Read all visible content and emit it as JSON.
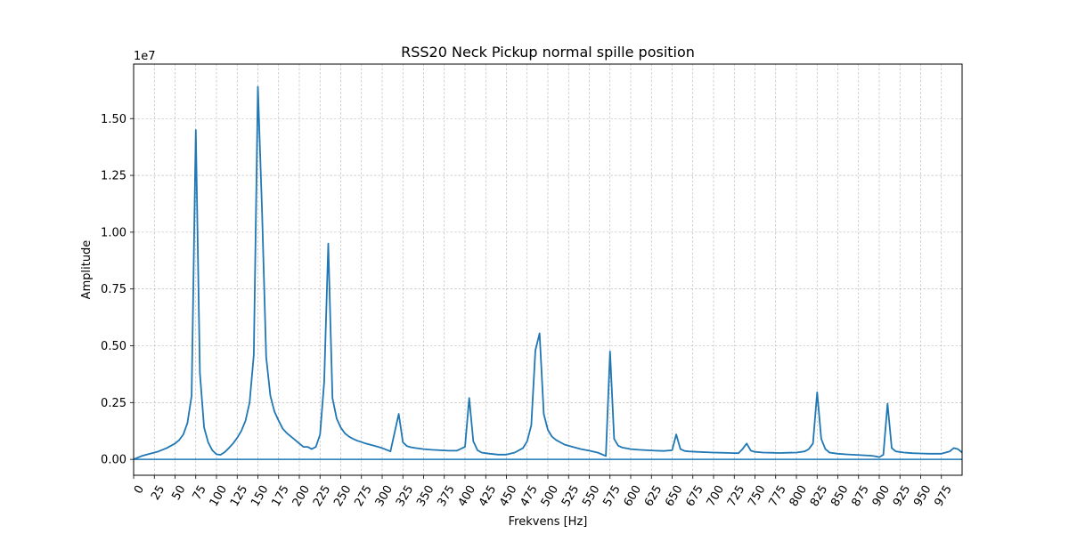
{
  "chart_data": {
    "type": "line",
    "title": "RSS20 Neck Pickup normal spille position",
    "xlabel": "Frekvens [Hz]",
    "ylabel": "Amplitude",
    "y_offset_label": "1e7",
    "xlim": [
      0,
      1000
    ],
    "ylim": [
      -700000,
      17400000
    ],
    "grid": true,
    "x_ticks": [
      0,
      25,
      50,
      75,
      100,
      125,
      150,
      175,
      200,
      225,
      250,
      275,
      300,
      325,
      350,
      375,
      400,
      425,
      450,
      475,
      500,
      525,
      550,
      575,
      600,
      625,
      650,
      675,
      700,
      725,
      750,
      775,
      800,
      825,
      850,
      875,
      900,
      925,
      950,
      975
    ],
    "y_ticks": [
      0,
      2500000,
      5000000,
      7500000,
      10000000,
      12500000,
      15000000
    ],
    "y_tick_labels": [
      "0.00",
      "0.25",
      "0.50",
      "0.75",
      "1.00",
      "1.25",
      "1.50"
    ],
    "line_color": "#1f77b4",
    "series": [
      {
        "x": [
          0,
          10,
          20,
          30,
          40,
          50,
          55,
          60,
          65,
          70,
          75,
          80,
          85,
          90,
          95,
          100,
          105,
          110,
          115,
          120,
          125,
          130,
          135,
          140,
          145,
          150,
          155,
          160,
          165,
          170,
          175,
          180,
          185,
          190,
          195,
          200,
          205,
          210,
          215,
          220,
          225,
          230,
          235,
          240,
          245,
          250,
          255,
          260,
          265,
          270,
          275,
          280,
          290,
          300,
          310,
          320,
          325,
          330,
          335,
          340,
          350,
          360,
          370,
          380,
          390,
          400,
          405,
          410,
          415,
          420,
          425,
          430,
          440,
          450,
          460,
          470,
          475,
          480,
          485,
          490,
          495,
          500,
          505,
          510,
          520,
          530,
          540,
          550,
          560,
          570,
          575,
          580,
          585,
          590,
          600,
          610,
          620,
          630,
          640,
          650,
          655,
          660,
          665,
          670,
          680,
          700,
          710,
          720,
          730,
          735,
          740,
          745,
          750,
          760,
          770,
          780,
          790,
          800,
          810,
          815,
          820,
          825,
          830,
          835,
          840,
          850,
          860,
          870,
          880,
          890,
          895,
          900,
          905,
          910,
          915,
          920,
          930,
          940,
          950,
          960,
          970,
          975,
          980,
          985,
          990,
          995,
          1000
        ],
        "y": [
          0,
          150000,
          250000,
          350000,
          500000,
          700000,
          850000,
          1100000,
          1600000,
          2800000,
          14500000,
          3800000,
          1400000,
          750000,
          400000,
          220000,
          200000,
          320000,
          500000,
          700000,
          950000,
          1250000,
          1700000,
          2500000,
          4600000,
          16400000,
          11000000,
          4500000,
          2800000,
          2100000,
          1700000,
          1350000,
          1150000,
          1000000,
          850000,
          700000,
          550000,
          550000,
          450000,
          550000,
          1100000,
          3400000,
          9500000,
          2700000,
          1800000,
          1400000,
          1150000,
          1000000,
          900000,
          820000,
          760000,
          700000,
          600000,
          500000,
          350000,
          2000000,
          750000,
          580000,
          530000,
          500000,
          450000,
          420000,
          400000,
          380000,
          380000,
          550000,
          2700000,
          800000,
          400000,
          300000,
          270000,
          250000,
          210000,
          210000,
          300000,
          500000,
          800000,
          1500000,
          4800000,
          5550000,
          2000000,
          1300000,
          1000000,
          850000,
          650000,
          550000,
          450000,
          380000,
          300000,
          150000,
          4750000,
          900000,
          600000,
          520000,
          450000,
          420000,
          400000,
          380000,
          370000,
          400000,
          1100000,
          450000,
          370000,
          350000,
          330000,
          300000,
          290000,
          280000,
          270000,
          450000,
          700000,
          380000,
          330000,
          300000,
          290000,
          280000,
          290000,
          300000,
          350000,
          450000,
          700000,
          2950000,
          900000,
          450000,
          300000,
          250000,
          220000,
          200000,
          180000,
          160000,
          140000,
          100000,
          200000,
          2450000,
          500000,
          350000,
          300000,
          270000,
          260000,
          250000,
          250000,
          250000,
          300000,
          350000,
          500000,
          450000,
          300000
        ]
      }
    ]
  }
}
